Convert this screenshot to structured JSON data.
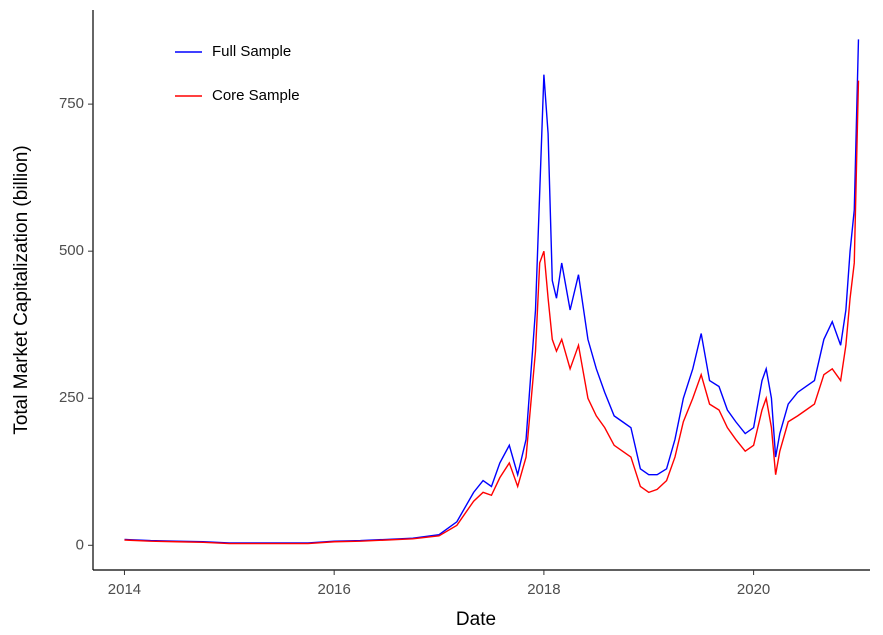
{
  "chart_data": {
    "type": "line",
    "x_label": "Date",
    "y_label": "Total Market Capitalization (billion)",
    "x": [
      2014.0,
      2014.25,
      2014.5,
      2014.75,
      2015.0,
      2015.25,
      2015.5,
      2015.75,
      2016.0,
      2016.25,
      2016.5,
      2016.75,
      2017.0,
      2017.17,
      2017.33,
      2017.42,
      2017.5,
      2017.58,
      2017.67,
      2017.75,
      2017.83,
      2017.92,
      2017.96,
      2018.0,
      2018.04,
      2018.08,
      2018.12,
      2018.17,
      2018.25,
      2018.33,
      2018.42,
      2018.5,
      2018.58,
      2018.67,
      2018.75,
      2018.83,
      2018.92,
      2019.0,
      2019.08,
      2019.17,
      2019.25,
      2019.33,
      2019.42,
      2019.5,
      2019.58,
      2019.67,
      2019.75,
      2019.83,
      2019.92,
      2020.0,
      2020.08,
      2020.12,
      2020.17,
      2020.21,
      2020.25,
      2020.33,
      2020.42,
      2020.5,
      2020.58,
      2020.67,
      2020.75,
      2020.83,
      2020.88,
      2020.92,
      2020.96,
      2021.0
    ],
    "series": [
      {
        "name": "Full Sample",
        "color": "#0000ff",
        "values": [
          10,
          8,
          7,
          6,
          4,
          4,
          4,
          4,
          7,
          8,
          10,
          12,
          18,
          40,
          90,
          110,
          100,
          140,
          170,
          120,
          180,
          400,
          600,
          800,
          700,
          450,
          420,
          480,
          400,
          460,
          350,
          300,
          260,
          220,
          210,
          200,
          130,
          120,
          120,
          130,
          180,
          250,
          300,
          360,
          280,
          270,
          230,
          210,
          190,
          200,
          280,
          300,
          250,
          150,
          190,
          240,
          260,
          270,
          280,
          350,
          380,
          340,
          400,
          500,
          570,
          860
        ]
      },
      {
        "name": "Core Sample",
        "color": "#ff0000",
        "values": [
          9,
          7,
          6,
          5,
          3,
          3,
          3,
          3,
          6,
          7,
          9,
          11,
          16,
          34,
          75,
          90,
          85,
          115,
          140,
          100,
          150,
          330,
          480,
          500,
          420,
          350,
          330,
          350,
          300,
          340,
          250,
          220,
          200,
          170,
          160,
          150,
          100,
          90,
          95,
          110,
          150,
          210,
          250,
          290,
          240,
          230,
          200,
          180,
          160,
          170,
          230,
          250,
          200,
          120,
          160,
          210,
          220,
          230,
          240,
          290,
          300,
          280,
          340,
          420,
          480,
          790
        ]
      }
    ],
    "xlim": [
      2013.7,
      2021.11
    ],
    "ylim": [
      -42,
      910
    ],
    "xticks": [
      2014,
      2016,
      2018,
      2020
    ],
    "yticks": [
      0,
      250,
      500,
      750
    ],
    "grid": false,
    "legend": "top-left"
  }
}
